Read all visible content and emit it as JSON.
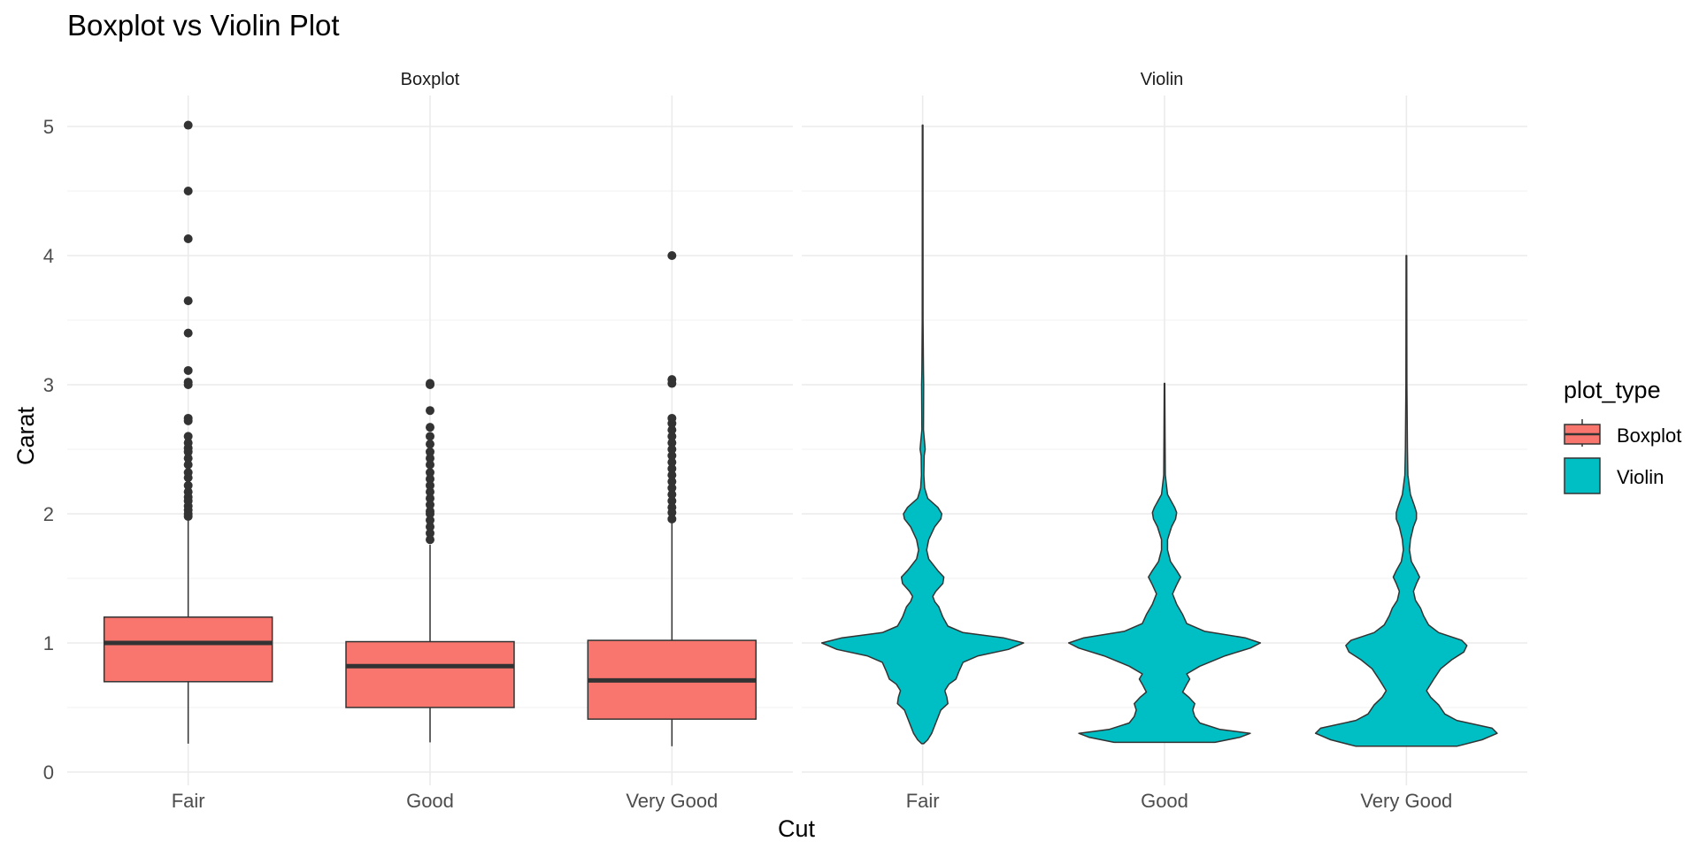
{
  "chart_data": {
    "type": "boxplot",
    "title": "Boxplot vs Violin Plot",
    "xlabel": "Cut",
    "ylabel": "Carat",
    "ylim": [
      0,
      5.2
    ],
    "yticks": [
      "0",
      "1",
      "2",
      "3",
      "4",
      "5"
    ],
    "grid": true,
    "categories": [
      "Fair",
      "Good",
      "Very Good"
    ],
    "facets": [
      "Boxplot",
      "Violin"
    ],
    "legend": {
      "title": "plot_type",
      "position": "right",
      "entries": [
        {
          "label": "Boxplot",
          "color": "#F8766D"
        },
        {
          "label": "Violin",
          "color": "#00BFC4"
        }
      ]
    },
    "boxplot": [
      {
        "category": "Fair",
        "min": 0.22,
        "q1": 0.7,
        "median": 1.0,
        "q3": 1.2,
        "whisker_high": 1.95,
        "outliers": [
          5.01,
          4.5,
          4.13,
          3.65,
          3.4,
          3.11,
          3.02,
          3.0,
          2.74,
          2.72,
          2.6,
          2.55,
          2.51,
          2.48,
          2.43,
          2.38,
          2.32,
          2.28,
          2.22,
          2.17,
          2.13,
          2.1,
          2.06,
          2.03,
          2.0,
          1.98
        ]
      },
      {
        "category": "Good",
        "min": 0.23,
        "q1": 0.5,
        "median": 0.82,
        "q3": 1.01,
        "whisker_high": 1.76,
        "outliers": [
          3.01,
          3.0,
          2.8,
          2.67,
          2.6,
          2.54,
          2.48,
          2.43,
          2.38,
          2.32,
          2.27,
          2.22,
          2.17,
          2.12,
          2.07,
          2.02,
          2.0,
          1.95,
          1.9,
          1.85,
          1.8
        ]
      },
      {
        "category": "Very Good",
        "min": 0.2,
        "q1": 0.41,
        "median": 0.71,
        "q3": 1.02,
        "whisker_high": 1.93,
        "outliers": [
          4.0,
          3.04,
          3.01,
          2.74,
          2.7,
          2.65,
          2.6,
          2.55,
          2.5,
          2.45,
          2.4,
          2.35,
          2.3,
          2.25,
          2.2,
          2.15,
          2.1,
          2.05,
          2.01,
          1.96
        ]
      }
    ],
    "violin": [
      {
        "category": "Fair",
        "min": 0.22,
        "max": 5.01,
        "profile": [
          [
            0.22,
            0.01
          ],
          [
            0.25,
            0.05
          ],
          [
            0.3,
            0.09
          ],
          [
            0.4,
            0.14
          ],
          [
            0.48,
            0.18
          ],
          [
            0.53,
            0.25
          ],
          [
            0.58,
            0.24
          ],
          [
            0.63,
            0.22
          ],
          [
            0.68,
            0.26
          ],
          [
            0.72,
            0.33
          ],
          [
            0.78,
            0.36
          ],
          [
            0.85,
            0.4
          ],
          [
            0.9,
            0.55
          ],
          [
            0.95,
            0.85
          ],
          [
            1.0,
            1.0
          ],
          [
            1.04,
            0.8
          ],
          [
            1.08,
            0.4
          ],
          [
            1.13,
            0.25
          ],
          [
            1.2,
            0.2
          ],
          [
            1.28,
            0.16
          ],
          [
            1.32,
            0.12
          ],
          [
            1.36,
            0.1
          ],
          [
            1.4,
            0.13
          ],
          [
            1.46,
            0.2
          ],
          [
            1.51,
            0.21
          ],
          [
            1.56,
            0.15
          ],
          [
            1.65,
            0.06
          ],
          [
            1.72,
            0.04
          ],
          [
            1.8,
            0.06
          ],
          [
            1.9,
            0.12
          ],
          [
            1.96,
            0.18
          ],
          [
            2.0,
            0.19
          ],
          [
            2.05,
            0.15
          ],
          [
            2.12,
            0.05
          ],
          [
            2.2,
            0.02
          ],
          [
            2.3,
            0.012
          ],
          [
            2.45,
            0.015
          ],
          [
            2.5,
            0.025
          ],
          [
            2.55,
            0.02
          ],
          [
            2.65,
            0.008
          ],
          [
            3.0,
            0.01
          ],
          [
            3.1,
            0.008
          ],
          [
            3.5,
            0.004
          ],
          [
            5.01,
            0.003
          ]
        ]
      },
      {
        "category": "Good",
        "min": 0.23,
        "max": 3.01,
        "profile": [
          [
            0.23,
            0.5
          ],
          [
            0.27,
            0.75
          ],
          [
            0.3,
            0.85
          ],
          [
            0.33,
            0.55
          ],
          [
            0.38,
            0.35
          ],
          [
            0.43,
            0.3
          ],
          [
            0.48,
            0.28
          ],
          [
            0.53,
            0.3
          ],
          [
            0.58,
            0.24
          ],
          [
            0.62,
            0.18
          ],
          [
            0.68,
            0.22
          ],
          [
            0.72,
            0.25
          ],
          [
            0.76,
            0.22
          ],
          [
            0.82,
            0.35
          ],
          [
            0.9,
            0.6
          ],
          [
            0.96,
            0.85
          ],
          [
            1.0,
            0.95
          ],
          [
            1.04,
            0.8
          ],
          [
            1.09,
            0.4
          ],
          [
            1.15,
            0.22
          ],
          [
            1.22,
            0.18
          ],
          [
            1.3,
            0.12
          ],
          [
            1.38,
            0.08
          ],
          [
            1.45,
            0.12
          ],
          [
            1.51,
            0.16
          ],
          [
            1.56,
            0.12
          ],
          [
            1.63,
            0.06
          ],
          [
            1.72,
            0.03
          ],
          [
            1.8,
            0.03
          ],
          [
            1.9,
            0.07
          ],
          [
            1.96,
            0.11
          ],
          [
            2.01,
            0.12
          ],
          [
            2.05,
            0.1
          ],
          [
            2.15,
            0.03
          ],
          [
            2.3,
            0.008
          ],
          [
            2.6,
            0.005
          ],
          [
            3.01,
            0.003
          ]
        ]
      },
      {
        "category": "Very Good",
        "min": 0.2,
        "max": 4.0,
        "profile": [
          [
            0.2,
            0.5
          ],
          [
            0.25,
            0.75
          ],
          [
            0.3,
            0.9
          ],
          [
            0.34,
            0.85
          ],
          [
            0.4,
            0.5
          ],
          [
            0.45,
            0.38
          ],
          [
            0.52,
            0.32
          ],
          [
            0.58,
            0.24
          ],
          [
            0.63,
            0.2
          ],
          [
            0.68,
            0.24
          ],
          [
            0.73,
            0.28
          ],
          [
            0.8,
            0.34
          ],
          [
            0.87,
            0.45
          ],
          [
            0.93,
            0.57
          ],
          [
            0.98,
            0.6
          ],
          [
            1.02,
            0.55
          ],
          [
            1.08,
            0.32
          ],
          [
            1.14,
            0.22
          ],
          [
            1.21,
            0.17
          ],
          [
            1.27,
            0.14
          ],
          [
            1.33,
            0.09
          ],
          [
            1.4,
            0.07
          ],
          [
            1.46,
            0.1
          ],
          [
            1.51,
            0.13
          ],
          [
            1.56,
            0.1
          ],
          [
            1.63,
            0.05
          ],
          [
            1.72,
            0.03
          ],
          [
            1.8,
            0.04
          ],
          [
            1.9,
            0.07
          ],
          [
            1.96,
            0.1
          ],
          [
            2.01,
            0.1
          ],
          [
            2.06,
            0.08
          ],
          [
            2.15,
            0.04
          ],
          [
            2.3,
            0.015
          ],
          [
            2.5,
            0.01
          ],
          [
            3.0,
            0.005
          ],
          [
            4.0,
            0.003
          ]
        ]
      }
    ]
  }
}
